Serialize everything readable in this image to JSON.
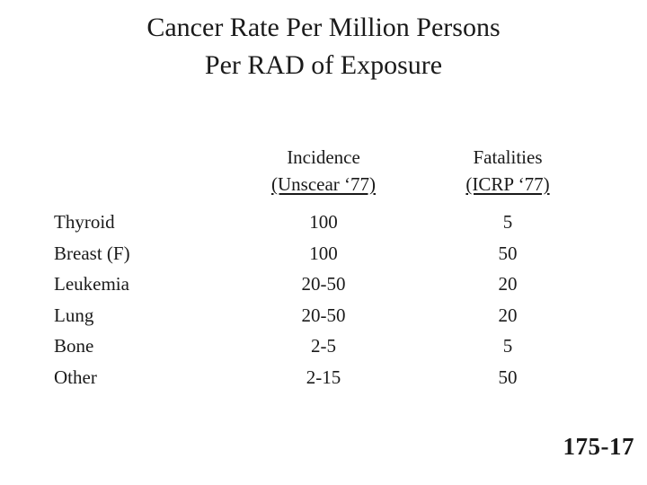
{
  "slide": {
    "title_line1": "Cancer Rate Per Million Persons",
    "title_line2": "Per RAD of Exposure",
    "page_number": "175-17"
  },
  "table": {
    "columns": {
      "incidence": {
        "label": "Incidence",
        "sublabel": "(Unscear ‘77)"
      },
      "fatalities": {
        "label": "Fatalities",
        "sublabel": "(ICRP ‘77)"
      }
    },
    "rows": [
      {
        "label": "Thyroid",
        "incidence": "100",
        "fatalities": "5"
      },
      {
        "label": "Breast (F)",
        "incidence": "100",
        "fatalities": "50"
      },
      {
        "label": "Leukemia",
        "incidence": "20-50",
        "fatalities": "20"
      },
      {
        "label": "Lung",
        "incidence": "20-50",
        "fatalities": "20"
      },
      {
        "label": "Bone",
        "incidence": "2-5",
        "fatalities": "5"
      },
      {
        "label": "Other",
        "incidence": "2-15",
        "fatalities": "50"
      }
    ]
  }
}
